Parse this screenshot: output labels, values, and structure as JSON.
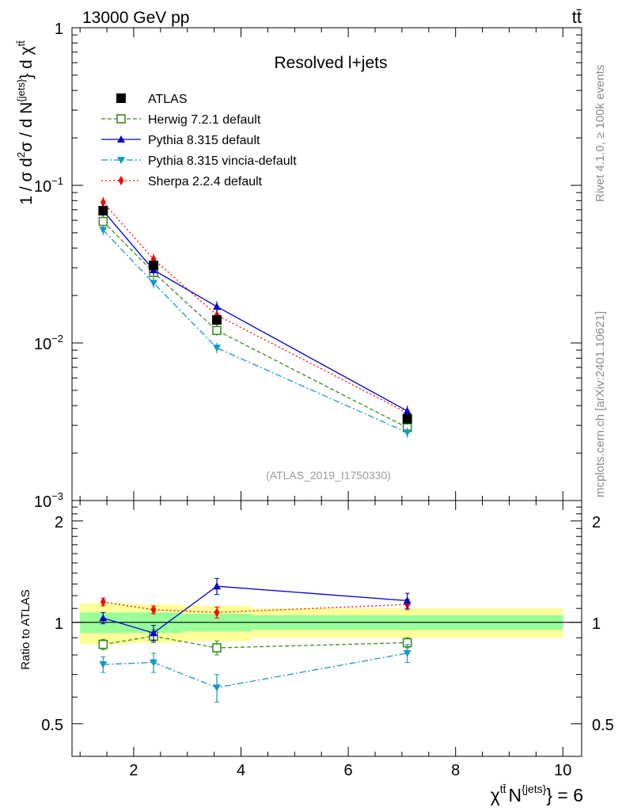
{
  "header": {
    "energy_label": "13000 GeV pp",
    "process_label": "tt̄"
  },
  "side_text": {
    "rivet": "Rivet 4.1.0, ≥ 100k events",
    "mcplots": "mcplots.cern.ch [arXiv:2401.10621]"
  },
  "chart_data": {
    "type": "line",
    "title": "Resolved l+jets",
    "analysis_label": "(ATLAS_2019_I1750330)",
    "xlabel": "χ^{tt̄} N^{jets} = 6",
    "xlabel_parts": {
      "chi": "χ",
      "chi_sup": "tt̄",
      "n": "N",
      "n_sup": "{jets}",
      "tail": "} = 6"
    },
    "ylabel_parts": {
      "a": "1 / σ d",
      "b": "2",
      "c": "σ / d N",
      "d": "{jets}",
      "e": "} d χ",
      "f": "tt̄"
    },
    "ratio_ylabel": "Ratio to ATLAS",
    "xlim": [
      0.85,
      10.35
    ],
    "ylim": [
      0.001,
      1
    ],
    "ratio_ylim": [
      0.4,
      2.3
    ],
    "xticks": [
      {
        "value": 2,
        "label": "2"
      },
      {
        "value": 4,
        "label": "4"
      },
      {
        "value": 6,
        "label": "6"
      },
      {
        "value": 8,
        "label": "8"
      },
      {
        "value": 10,
        "label": "10"
      }
    ],
    "yticks": [
      {
        "value": 1,
        "base": "1",
        "exp": ""
      },
      {
        "value": 0.1,
        "base": "10",
        "exp": "−1"
      },
      {
        "value": 0.01,
        "base": "10",
        "exp": "−2"
      },
      {
        "value": 0.001,
        "base": "10",
        "exp": "−3"
      }
    ],
    "ratio_yticks": [
      {
        "value": 0.5,
        "label": "0.5"
      },
      {
        "value": 1,
        "label": "1"
      },
      {
        "value": 2,
        "label": "2"
      }
    ],
    "x": [
      1.43,
      2.37,
      3.55,
      7.1
    ],
    "bins": [
      [
        1.0,
        1.9
      ],
      [
        1.9,
        2.9
      ],
      [
        2.9,
        4.2
      ],
      [
        4.2,
        10.0
      ]
    ],
    "band_inner": [
      0.07,
      0.07,
      0.06,
      0.05
    ],
    "band_outer": [
      0.14,
      0.13,
      0.12,
      0.1
    ],
    "series": [
      {
        "name": "ATLAS",
        "color": "#000000",
        "marker": "square",
        "dash": "",
        "values": [
          0.069,
          0.031,
          0.014,
          0.0033
        ],
        "ratio": [],
        "ratio_err": []
      },
      {
        "name": "Herwig 7.2.1 default",
        "color": "#3a8c1e",
        "marker": "open-square",
        "dash": "5,3",
        "values": [
          0.059,
          0.028,
          0.012,
          0.0029
        ],
        "ratio": [
          0.86,
          0.91,
          0.84,
          0.87
        ],
        "ratio_err": [
          0.03,
          0.04,
          0.04,
          0.03
        ]
      },
      {
        "name": "Pythia 8.315 default",
        "color": "#0000cc",
        "marker": "triangle-up",
        "dash": "",
        "values": [
          0.069,
          0.029,
          0.017,
          0.0037
        ],
        "ratio": [
          1.03,
          0.93,
          1.28,
          1.16
        ],
        "ratio_err": [
          0.04,
          0.05,
          0.07,
          0.06
        ]
      },
      {
        "name": "Pythia 8.315 vincia-default",
        "color": "#1799c0",
        "marker": "triangle-down",
        "dash": "8,3,2,3",
        "values": [
          0.052,
          0.024,
          0.0093,
          0.0027
        ],
        "ratio": [
          0.75,
          0.76,
          0.64,
          0.81
        ],
        "ratio_err": [
          0.04,
          0.05,
          0.06,
          0.05
        ]
      },
      {
        "name": "Sherpa 2.2.4 default",
        "color": "#ff0000",
        "marker": "diamond",
        "dash": "2,3",
        "values": [
          0.078,
          0.034,
          0.015,
          0.0036
        ],
        "ratio": [
          1.15,
          1.09,
          1.07,
          1.13
        ],
        "ratio_err": [
          0.03,
          0.03,
          0.04,
          0.04
        ]
      }
    ]
  }
}
